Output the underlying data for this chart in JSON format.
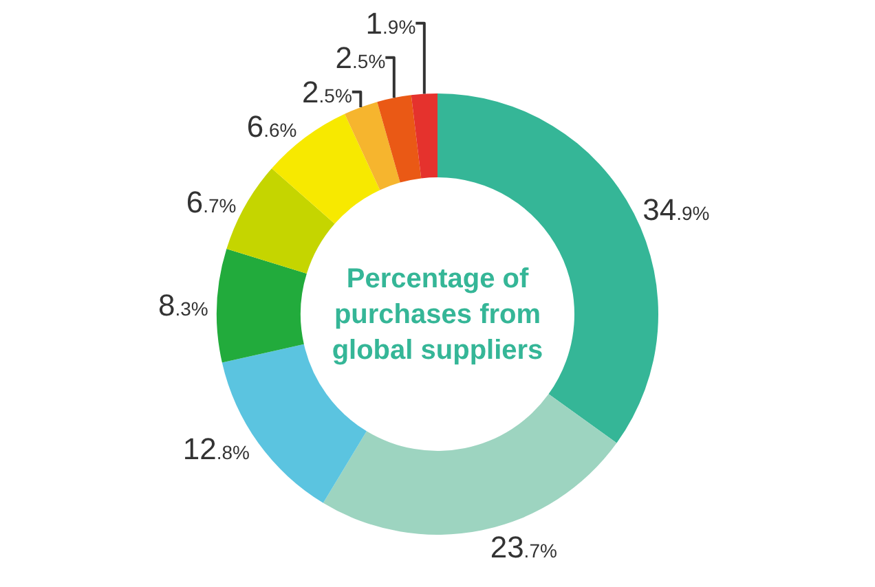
{
  "chart_data": {
    "type": "donut",
    "title": "Percentage of purchases from global suppliers",
    "categories": [
      null,
      null,
      null,
      null,
      null,
      null,
      null,
      null,
      null
    ],
    "values": [
      34.9,
      23.7,
      12.8,
      8.3,
      6.7,
      6.6,
      2.5,
      2.5,
      1.9
    ],
    "value_labels": [
      "34.9%",
      "23.7%",
      "12.8%",
      "8.3%",
      "6.7%",
      "6.6%",
      "2.5%",
      "2.5%",
      "1.9%"
    ],
    "colors": [
      "#35b697",
      "#9dd4c0",
      "#5bc4e0",
      "#22ab3c",
      "#c5d500",
      "#f7e900",
      "#f6b52e",
      "#ea5915",
      "#e5322d"
    ],
    "legend": false
  }
}
